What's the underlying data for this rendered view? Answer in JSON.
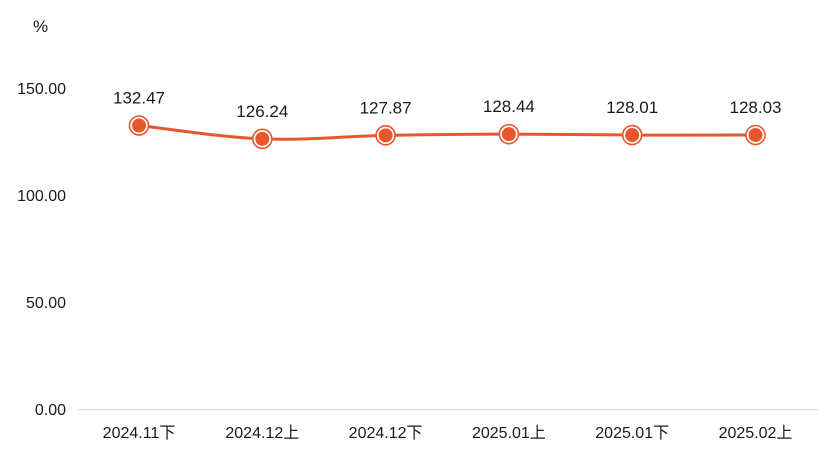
{
  "chart_data": {
    "type": "line",
    "unit": "%",
    "categories": [
      "2024.11下",
      "2024.12上",
      "2024.12下",
      "2025.01上",
      "2025.01下",
      "2025.02上"
    ],
    "values": [
      132.47,
      126.24,
      127.87,
      128.44,
      128.01,
      128.03
    ],
    "value_labels": [
      "132.47",
      "126.24",
      "127.87",
      "128.44",
      "128.01",
      "128.03"
    ],
    "y_ticks": [
      "0.00",
      "50.00",
      "100.00",
      "150.00"
    ],
    "ylim": [
      0,
      150
    ],
    "grid": false,
    "colors": {
      "line": "#e8572b",
      "axis": "#d9d9d9"
    }
  }
}
